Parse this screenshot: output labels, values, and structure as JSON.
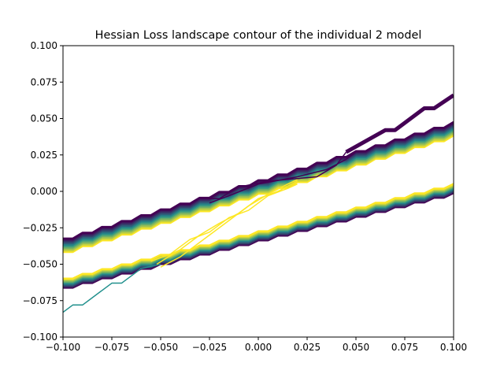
{
  "chart_data": {
    "type": "contour",
    "title": "Hessian Loss landscape contour of the individual 2 model",
    "xlabel": "",
    "ylabel": "",
    "xlim": [
      -0.1,
      0.1
    ],
    "ylim": [
      -0.1,
      0.1
    ],
    "x_ticks": [
      -0.1,
      -0.075,
      -0.05,
      -0.025,
      0.0,
      0.025,
      0.05,
      0.075,
      0.1
    ],
    "x_tick_labels": [
      "−0.100",
      "−0.075",
      "−0.050",
      "−0.025",
      "0.000",
      "0.025",
      "0.050",
      "0.075",
      "0.100"
    ],
    "y_ticks": [
      -0.1,
      -0.075,
      -0.05,
      -0.025,
      0.0,
      0.025,
      0.05,
      0.075,
      0.1
    ],
    "y_tick_labels": [
      "−0.100",
      "−0.075",
      "−0.050",
      "−0.025",
      "0.000",
      "0.025",
      "0.050",
      "0.075",
      "0.100"
    ],
    "colormap": "viridis",
    "colors": {
      "dark": "#440154",
      "mid": "#21908d",
      "light": "#fde725"
    },
    "grid": false,
    "bands": [
      {
        "start": [
          -0.1,
          -0.037
        ],
        "end": [
          0.1,
          0.043
        ],
        "steps": 20,
        "levels": 10,
        "spacing": 0.001,
        "color_order": "dark_top",
        "width": 3
      },
      {
        "start": [
          -0.1,
          -0.063
        ],
        "end": [
          0.1,
          0.002
        ],
        "steps": 20,
        "levels": 10,
        "spacing": 0.0007,
        "color_order": "light_top",
        "width": 2.5
      }
    ],
    "lines": [
      {
        "color": "dark",
        "width": 5,
        "points": [
          [
            0.045,
            0.027
          ],
          [
            0.065,
            0.042
          ],
          [
            0.07,
            0.042
          ],
          [
            0.085,
            0.057
          ],
          [
            0.09,
            0.057
          ],
          [
            0.1,
            0.066
          ]
        ]
      },
      {
        "color": "dark",
        "width": 1.5,
        "points": [
          [
            -0.025,
            -0.005
          ],
          [
            -0.02,
            -0.005
          ],
          [
            -0.01,
            0.003
          ],
          [
            0.005,
            0.007
          ],
          [
            0.03,
            0.01
          ],
          [
            0.04,
            0.018
          ],
          [
            0.045,
            0.027
          ]
        ]
      },
      {
        "color": "dark",
        "width": 1.5,
        "points": [
          [
            -0.025,
            -0.008
          ],
          [
            -0.015,
            -0.003
          ],
          [
            0.0,
            0.005
          ],
          [
            0.02,
            0.01
          ],
          [
            0.035,
            0.015
          ],
          [
            0.045,
            0.022
          ],
          [
            0.05,
            0.027
          ]
        ]
      },
      {
        "color": "mid",
        "width": 1.5,
        "points": [
          [
            -0.1,
            -0.083
          ],
          [
            -0.095,
            -0.078
          ],
          [
            -0.09,
            -0.078
          ],
          [
            -0.08,
            -0.068
          ],
          [
            -0.075,
            -0.063
          ],
          [
            -0.07,
            -0.063
          ],
          [
            -0.06,
            -0.053
          ],
          [
            -0.05,
            -0.05
          ]
        ]
      },
      {
        "color": "light",
        "width": 1.5,
        "points": [
          [
            -0.055,
            -0.048
          ],
          [
            -0.045,
            -0.043
          ],
          [
            -0.035,
            -0.033
          ],
          [
            -0.025,
            -0.028
          ],
          [
            -0.015,
            -0.018
          ],
          [
            -0.005,
            -0.013
          ],
          [
            0.005,
            -0.003
          ],
          [
            0.015,
            0.002
          ],
          [
            0.02,
            0.005
          ]
        ]
      },
      {
        "color": "light",
        "width": 1.5,
        "points": [
          [
            -0.052,
            -0.05
          ],
          [
            -0.04,
            -0.04
          ],
          [
            -0.03,
            -0.03
          ],
          [
            -0.02,
            -0.022
          ],
          [
            -0.01,
            -0.015
          ],
          [
            0.0,
            -0.005
          ],
          [
            0.01,
            0.0
          ],
          [
            0.02,
            0.007
          ]
        ]
      },
      {
        "color": "light",
        "width": 1.5,
        "points": [
          [
            -0.05,
            -0.052
          ],
          [
            -0.04,
            -0.045
          ],
          [
            -0.03,
            -0.035
          ],
          [
            -0.02,
            -0.025
          ],
          [
            -0.005,
            -0.01
          ],
          [
            0.005,
            -0.002
          ],
          [
            0.015,
            0.005
          ],
          [
            0.02,
            0.008
          ]
        ]
      }
    ]
  }
}
